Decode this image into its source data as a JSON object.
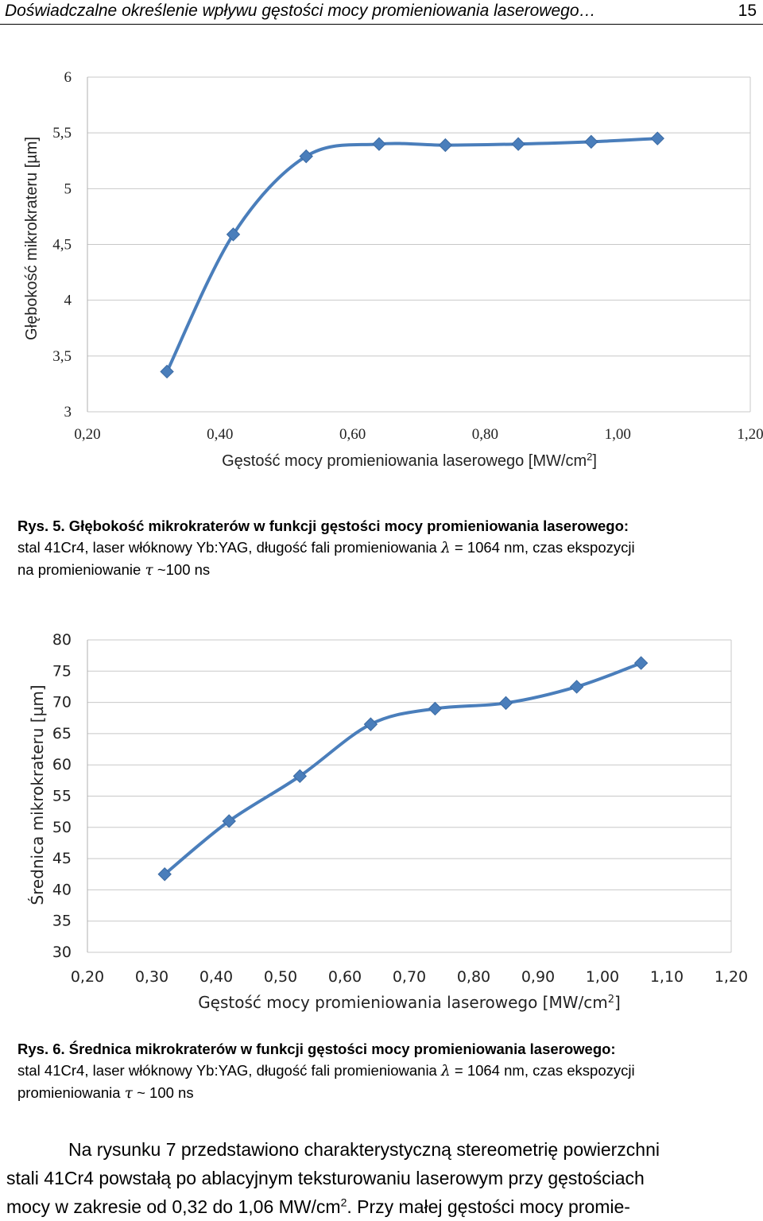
{
  "header": {
    "title": "Doświadczalne określenie wpływu gęstości mocy promieniowania laserowego…",
    "page_number": "15"
  },
  "chart_data": [
    {
      "type": "line",
      "x": [
        0.32,
        0.42,
        0.53,
        0.64,
        0.74,
        0.85,
        0.96,
        1.06
      ],
      "series": [
        {
          "values": [
            3.36,
            4.59,
            5.29,
            5.4,
            5.39,
            5.4,
            5.42,
            5.45
          ]
        }
      ],
      "xlim": [
        0.2,
        1.2
      ],
      "ylim": [
        3,
        6
      ],
      "xticks": [
        "0,20",
        "0,40",
        "0,60",
        "0,80",
        "1,00",
        "1,20"
      ],
      "yticks": [
        "3",
        "3,5",
        "4",
        "4,5",
        "5",
        "5,5",
        "6"
      ],
      "xlabel": "Gęstość mocy promieniowania laserowego [MW/cm",
      "xlabel_sup": "2",
      "xlabel_end": "]",
      "ylabel": "Głębokość mikrokrateru [µm]",
      "grid": true,
      "color": "#4A7EBB"
    },
    {
      "type": "line",
      "x": [
        0.32,
        0.42,
        0.53,
        0.64,
        0.74,
        0.85,
        0.96,
        1.06
      ],
      "series": [
        {
          "values": [
            42.5,
            51.0,
            58.2,
            66.5,
            69.0,
            69.9,
            72.5,
            76.3
          ]
        }
      ],
      "xlim": [
        0.2,
        1.2
      ],
      "ylim": [
        30,
        80
      ],
      "xticks": [
        "0,20",
        "0,30",
        "0,40",
        "0,50",
        "0,60",
        "0,70",
        "0,80",
        "0,90",
        "1,00",
        "1,10",
        "1,20"
      ],
      "yticks": [
        "30",
        "35",
        "40",
        "45",
        "50",
        "55",
        "60",
        "65",
        "70",
        "75",
        "80"
      ],
      "xlabel": "Gęstość mocy promieniowania laserowego [MW/cm",
      "xlabel_sup": "2",
      "xlabel_end": "]",
      "ylabel": "Średnica mikrokrateru [µm]",
      "grid": true,
      "color": "#4A7EBB"
    }
  ],
  "captions": [
    {
      "number": "Rys. 5.",
      "title": "Głębokość mikrokraterów w funkcji gęstości mocy promieniowania laserowego:",
      "line2a": "stal 41Cr4, laser włóknowy Yb:YAG, długość fali promieniowania",
      "lambda": "λ",
      "line2b": "= 1064 nm, czas ekspozycji",
      "line3a": "na promieniowanie",
      "tau": "τ",
      "line3b": "~100 ns"
    },
    {
      "number": "Rys. 6.",
      "title": "Średnica mikrokraterów w funkcji gęstości mocy promieniowania laserowego:",
      "line2a": "stal 41Cr4, laser włóknowy Yb:YAG, długość fali promieniowania",
      "lambda": "λ",
      "line2b": "= 1064 nm, czas ekspozycji",
      "line3a": "promieniowania",
      "tau": "τ",
      "line3b": "~ 100 ns"
    }
  ],
  "paragraph": {
    "line1": "Na rysunku 7 przedstawiono charakterystyczną stereometrię powierzchni",
    "line2": "stali 41Cr4 powstałą po ablacyjnym teksturowaniu laserowym przy gęstościach",
    "line3a": "mocy w zakresie od 0,32 do 1,06 MW/cm",
    "line3_sup": "2",
    "line3b": ". Przy małej gęstości mocy promie-"
  }
}
